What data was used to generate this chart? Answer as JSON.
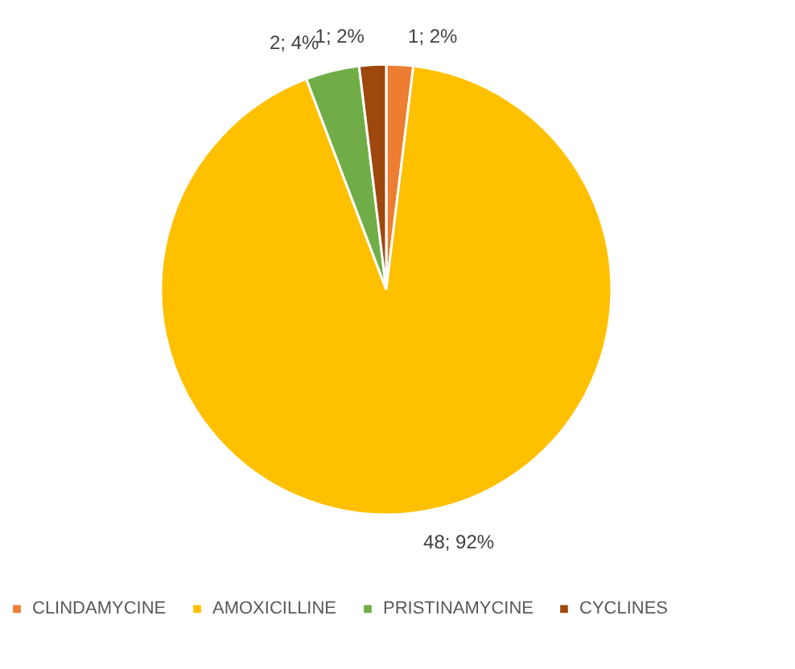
{
  "chart_data": {
    "type": "pie",
    "categories": [
      "CLINDAMYCINE",
      "AMOXICILLINE",
      "PRISTINAMYCINE",
      "CYCLINES"
    ],
    "values": [
      1,
      48,
      2,
      1
    ],
    "colors": [
      "#ed7d31",
      "#ffc000",
      "#70ad47",
      "#9e480e"
    ],
    "value_labels": [
      "1; 2%",
      "48; 92%",
      "2; 4%",
      "1; 2%"
    ],
    "legend": "bottom"
  }
}
